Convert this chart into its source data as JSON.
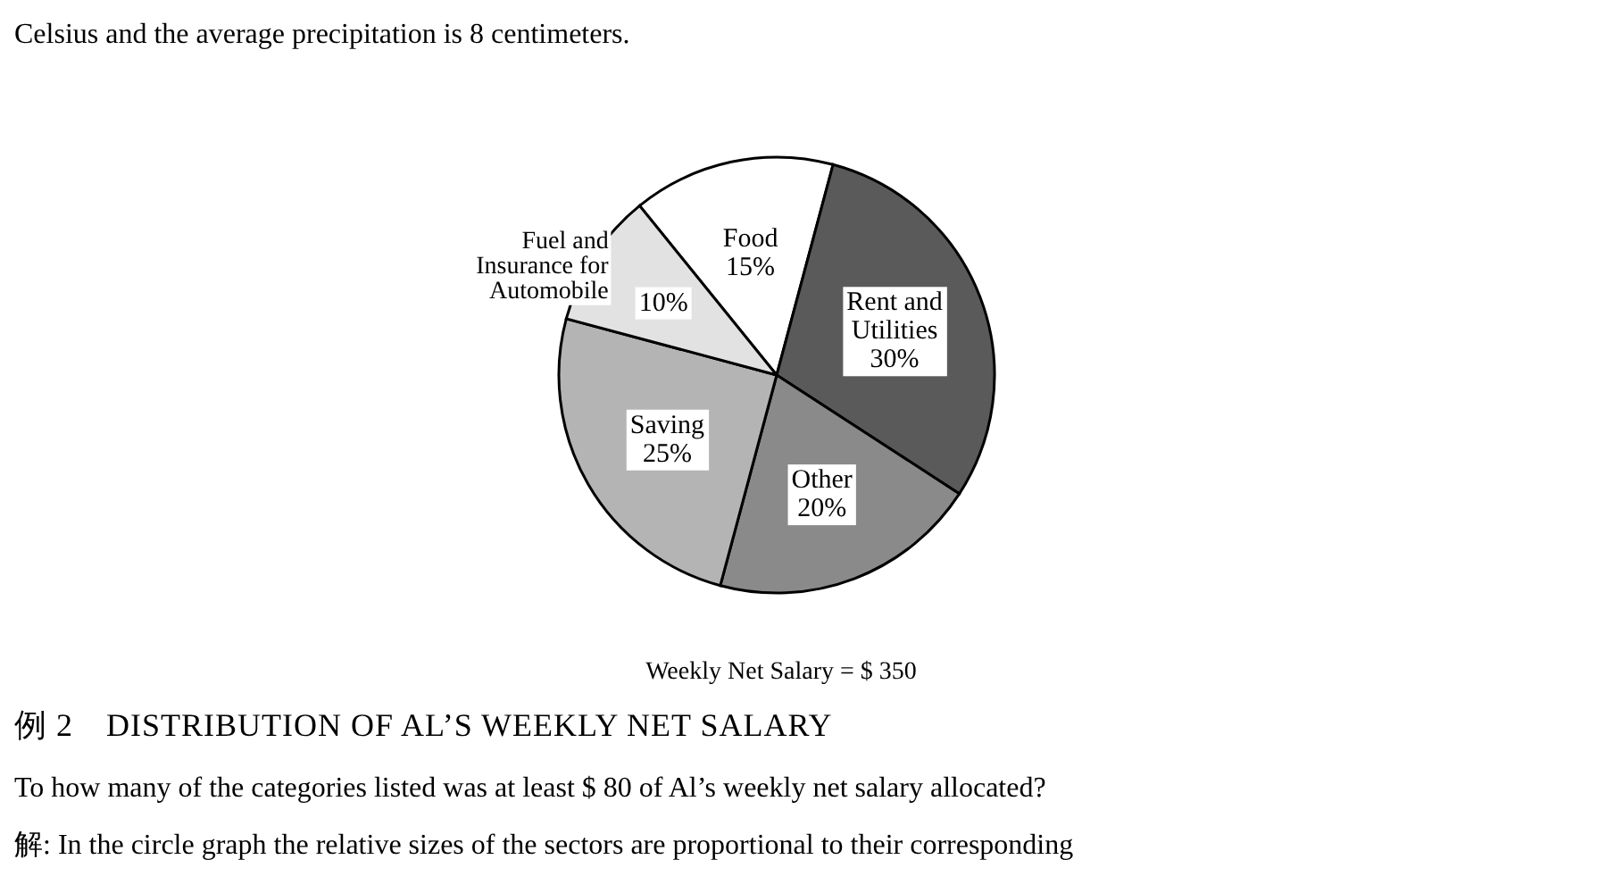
{
  "chart_data": {
    "type": "pie",
    "title": "例 2　DISTRIBUTION OF AL’S WEEKLY NET SALARY",
    "categories": [
      "Food",
      "Rent and Utilities",
      "Other",
      "Saving",
      "Fuel and Insurance for Automobile"
    ],
    "values": [
      15,
      30,
      20,
      25,
      10
    ],
    "value_labels": [
      "15%",
      "30%",
      "20%",
      "25%",
      "10%"
    ],
    "colors": [
      "#ffffff",
      "#5a5a5a",
      "#8a8a8a",
      "#b4b4b4",
      "#e2e2e2"
    ],
    "annotations": [
      "Celsius and the average precipitation is 8 centimeters.",
      "Weekly Net Salary = $ 350",
      "To how many of the categories listed was at least $ 80 of Al’s weekly net salary allocated?",
      "解: In the circle graph the relative sizes of the sectors are proportional to their corresponding"
    ]
  }
}
